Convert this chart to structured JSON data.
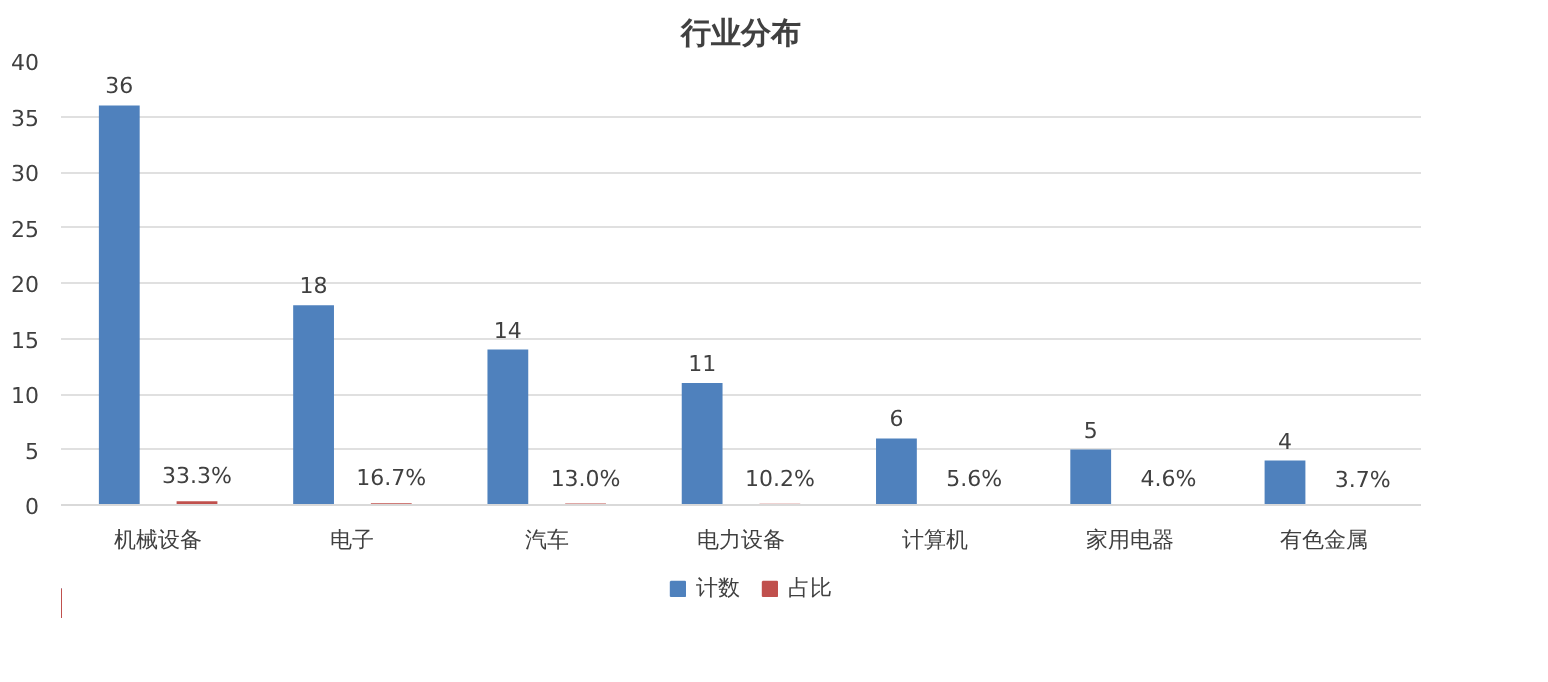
{
  "chart_data": {
    "type": "bar",
    "title": "行业分布",
    "categories": [
      "机械设备",
      "电子",
      "汽车",
      "电力设备",
      "计算机",
      "家用电器",
      "有色金属"
    ],
    "series": [
      {
        "name": "计数",
        "color": "#4f81bd",
        "values": [
          36,
          18,
          14,
          11,
          6,
          5,
          4
        ],
        "value_labels": [
          "36",
          "18",
          "14",
          "11",
          "6",
          "5",
          "4"
        ]
      },
      {
        "name": "占比",
        "color": "#c0504d",
        "values": [
          0.333,
          0.167,
          0.13,
          0.102,
          0.056,
          0.046,
          0.037
        ],
        "value_labels": [
          "33.3%",
          "16.7%",
          "13.0%",
          "10.2%",
          "5.6%",
          "4.6%",
          "3.7%"
        ]
      }
    ],
    "ylim": [
      0,
      40
    ],
    "yticks": [
      0,
      5,
      10,
      15,
      20,
      25,
      30,
      35,
      40
    ],
    "grid": "y",
    "legend": "bottom"
  }
}
